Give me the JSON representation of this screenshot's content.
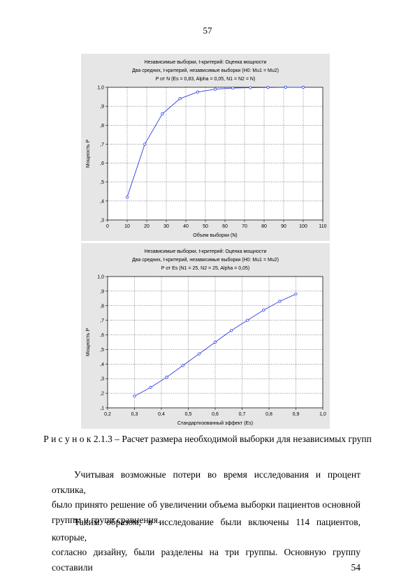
{
  "page": {
    "number": "57"
  },
  "charts": [
    {
      "title_lines": [
        "Независимые выборки, t-критерий: Оценка мощности",
        "Два средних, t-критерий, независимые выборки (H0:  Mu1 = Mu2)",
        "P от N (Es = 0,83, Alpha = 0,05, N1 = N2 = N)"
      ],
      "xlabel": "Объем выборки (N)",
      "ylabel": "Мощность P",
      "x_ticks": [
        "0",
        "10",
        "20",
        "30",
        "40",
        "50",
        "60",
        "70",
        "80",
        "90",
        "100",
        "110"
      ],
      "y_ticks": [
        ",3",
        ",4",
        ",5",
        ",6",
        ",7",
        ",8",
        ",9",
        "1,0"
      ]
    },
    {
      "title_lines": [
        "Независимые выборки, t-критерий: Оценка мощности",
        "Два средних, t-критерий, независимые выборки (H0:  Mu1 = Mu2)",
        "P от Es (N1 = 25, N2 = 25, Alpha = 0,05)"
      ],
      "xlabel": "Стандартизованный эффект (Es)",
      "ylabel": "Мощность P",
      "x_ticks": [
        "0,2",
        "0,3",
        "0,4",
        "0,5",
        "0,6",
        "0,7",
        "0,8",
        "0,9",
        "1,0"
      ],
      "y_ticks": [
        ",1",
        ",2",
        ",3",
        ",4",
        ",5",
        ",6",
        ",7",
        ",8",
        ",9",
        "1,0"
      ]
    }
  ],
  "chart_data": [
    {
      "type": "line",
      "xlim": [
        0,
        110
      ],
      "ylim": [
        0.3,
        1.0
      ],
      "grid": true,
      "legend": "none",
      "series": [
        {
          "x": [
            10,
            19,
            28,
            37,
            46,
            55,
            64,
            73,
            82,
            91,
            100
          ],
          "y": [
            0.42,
            0.7,
            0.86,
            0.94,
            0.975,
            0.99,
            0.996,
            0.998,
            0.999,
            1.0,
            1.0
          ]
        }
      ],
      "color": "#2f3fe0"
    },
    {
      "type": "line",
      "xlim": [
        0.2,
        1.0
      ],
      "ylim": [
        0.1,
        1.0
      ],
      "grid": true,
      "legend": "none",
      "series": [
        {
          "x": [
            0.3,
            0.36,
            0.42,
            0.48,
            0.54,
            0.6,
            0.66,
            0.72,
            0.78,
            0.84,
            0.9
          ],
          "y": [
            0.18,
            0.24,
            0.31,
            0.39,
            0.47,
            0.55,
            0.63,
            0.7,
            0.77,
            0.83,
            0.88
          ]
        }
      ],
      "color": "#2f3fe0"
    }
  ],
  "caption": {
    "label": "Р и с у н о к 2.1.3",
    "text": " – Расчет размера необходимой выборки для независимых групп"
  },
  "paragraphs": [
    {
      "lines": [
        "Учитывая возможные потери во время исследования и процент отклика,",
        "было принято решение об увеличении объема выборки пациентов основной",
        "группы и групп сравнения."
      ]
    },
    {
      "lines": [
        "Таким образом, в исследование были включены 114 пациентов, которые,",
        "согласно дизайну, были разделены на три группы. Основную группу составили 54"
      ]
    }
  ]
}
